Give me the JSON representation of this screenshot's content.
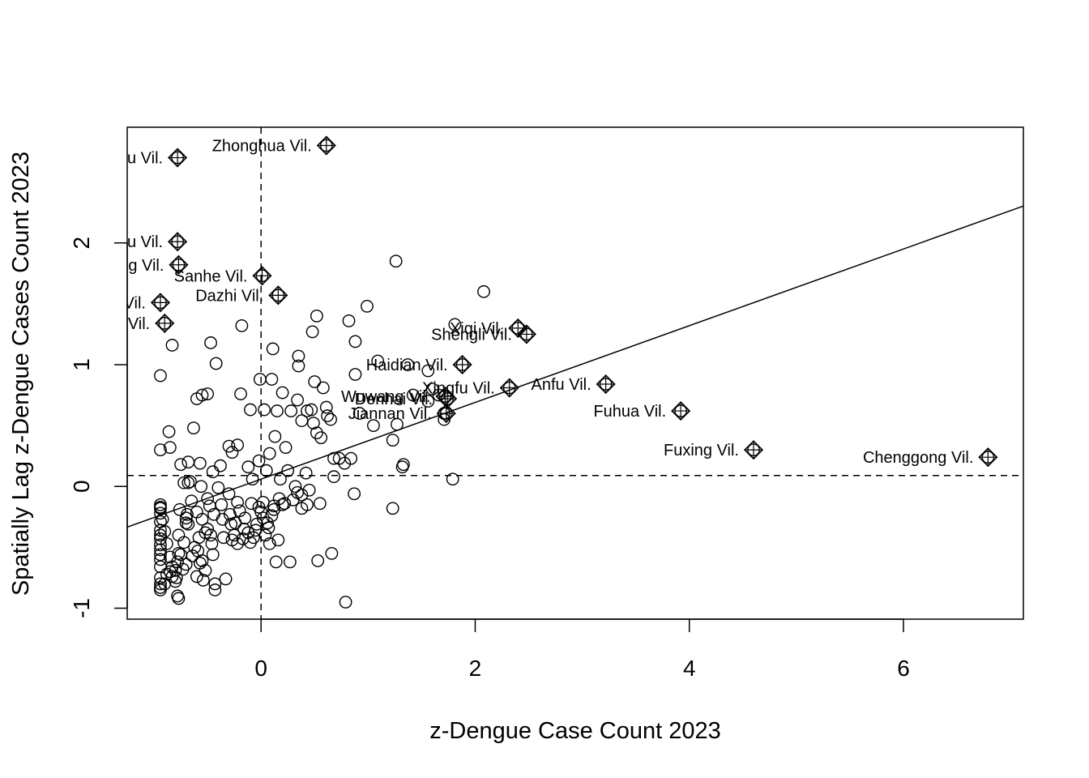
{
  "chart_data": {
    "type": "scatter",
    "title": "",
    "xlabel": "z-Dengue Case Count 2023",
    "ylabel": "Spatially Lag z-Dengue Cases Count 2023",
    "xlim": [
      -1.25,
      7.12
    ],
    "ylim": [
      -1.09,
      2.95
    ],
    "x_ticks": [
      0,
      2,
      4,
      6
    ],
    "y_ticks": [
      -1,
      0,
      1,
      2
    ],
    "x_tick_labels": [
      "0",
      "2",
      "4",
      "6"
    ],
    "y_tick_labels": [
      "-1",
      "0",
      "1",
      "2"
    ],
    "grid": false,
    "reference_lines": {
      "vertical_dashed_x": 0,
      "horizontal_dashed_y": 0.09,
      "regression_line": {
        "intercept": 0.06,
        "slope": 0.315
      }
    },
    "points": [
      [
        -0.94,
        -0.85
      ],
      [
        -0.94,
        -0.83
      ],
      [
        -0.94,
        -0.8
      ],
      [
        -0.94,
        -0.75
      ],
      [
        -0.94,
        -0.66
      ],
      [
        -0.94,
        -0.6
      ],
      [
        -0.94,
        -0.56
      ],
      [
        -0.94,
        -0.52
      ],
      [
        -0.94,
        -0.48
      ],
      [
        -0.94,
        -0.43
      ],
      [
        -0.94,
        -0.4
      ],
      [
        -0.94,
        -0.36
      ],
      [
        -0.94,
        -0.29
      ],
      [
        -0.94,
        -0.22
      ],
      [
        -0.94,
        -0.18
      ],
      [
        -0.94,
        -0.15
      ],
      [
        -0.94,
        0.3
      ],
      [
        -0.94,
        0.91
      ],
      [
        -0.9,
        -0.8
      ],
      [
        -0.88,
        -0.72
      ],
      [
        -0.85,
        -0.7
      ],
      [
        -0.83,
        -0.74
      ],
      [
        -0.8,
        -0.69
      ],
      [
        -0.79,
        -0.75
      ],
      [
        -0.78,
        -0.62
      ],
      [
        -0.77,
        -0.55
      ],
      [
        -0.77,
        -0.4
      ],
      [
        -0.76,
        -0.19
      ],
      [
        -0.78,
        -0.9
      ],
      [
        -0.77,
        -0.92
      ],
      [
        -0.73,
        -0.68
      ],
      [
        -0.7,
        -0.64
      ],
      [
        -0.7,
        -0.3
      ],
      [
        -0.7,
        -0.26
      ],
      [
        -0.69,
        -0.23
      ],
      [
        -0.68,
        0.03
      ],
      [
        -0.66,
        0.04
      ],
      [
        -0.64,
        -0.57
      ],
      [
        -0.62,
        -0.5
      ],
      [
        -0.6,
        -0.74
      ],
      [
        -0.59,
        -0.53
      ],
      [
        -0.58,
        -0.42
      ],
      [
        -0.57,
        -0.63
      ],
      [
        -0.56,
        0.0
      ],
      [
        -0.55,
        -0.61
      ],
      [
        -0.54,
        -0.77
      ],
      [
        -0.52,
        -0.69
      ],
      [
        -0.5,
        -0.35
      ],
      [
        -0.5,
        -0.1
      ],
      [
        -0.47,
        -0.4
      ],
      [
        -0.46,
        -0.47
      ],
      [
        -0.45,
        -0.56
      ],
      [
        -0.43,
        -0.85
      ],
      [
        -0.43,
        -0.8
      ],
      [
        -0.4,
        -0.01
      ],
      [
        -0.37,
        -0.15
      ],
      [
        -0.35,
        -0.42
      ],
      [
        -0.33,
        -0.76
      ],
      [
        -0.3,
        -0.06
      ],
      [
        -0.29,
        -0.23
      ],
      [
        -0.27,
        -0.44
      ],
      [
        -0.25,
        -0.4
      ],
      [
        -0.24,
        -0.3
      ],
      [
        -0.22,
        -0.47
      ],
      [
        -0.2,
        -0.2
      ],
      [
        -0.17,
        -0.43
      ],
      [
        -0.15,
        -0.26
      ],
      [
        -0.12,
        -0.38
      ],
      [
        -0.1,
        -0.46
      ],
      [
        -0.07,
        -0.42
      ],
      [
        -0.05,
        -0.36
      ],
      [
        -0.02,
        -0.17
      ],
      [
        0.0,
        -0.21
      ],
      [
        0.02,
        -0.13
      ],
      [
        0.04,
        -0.4
      ],
      [
        0.06,
        -0.3
      ],
      [
        0.08,
        -0.47
      ],
      [
        0.1,
        -0.24
      ],
      [
        0.12,
        -0.16
      ],
      [
        0.14,
        -0.62
      ],
      [
        0.16,
        -0.44
      ],
      [
        0.2,
        -0.15
      ],
      [
        0.27,
        -0.62
      ],
      [
        0.3,
        -0.11
      ],
      [
        0.34,
        -0.05
      ],
      [
        0.38,
        -0.18
      ],
      [
        0.43,
        -0.15
      ],
      [
        0.55,
        -0.14
      ],
      [
        0.53,
        -0.61
      ],
      [
        0.66,
        -0.55
      ],
      [
        0.87,
        -0.06
      ],
      [
        0.79,
        -0.95
      ],
      [
        1.23,
        -0.18
      ],
      [
        1.79,
        0.06
      ],
      [
        -0.86,
        0.45
      ],
      [
        -0.85,
        0.32
      ],
      [
        -0.83,
        1.16
      ],
      [
        -0.75,
        0.18
      ],
      [
        -0.72,
        0.03
      ],
      [
        -0.68,
        0.2
      ],
      [
        -0.63,
        0.48
      ],
      [
        -0.6,
        0.72
      ],
      [
        -0.57,
        0.19
      ],
      [
        -0.55,
        0.75
      ],
      [
        -0.5,
        0.76
      ],
      [
        -0.47,
        1.18
      ],
      [
        -0.45,
        0.12
      ],
      [
        -0.42,
        1.01
      ],
      [
        -0.38,
        0.17
      ],
      [
        -0.3,
        0.33
      ],
      [
        -0.27,
        0.28
      ],
      [
        -0.22,
        0.34
      ],
      [
        -0.19,
        0.76
      ],
      [
        -0.18,
        1.32
      ],
      [
        -0.12,
        0.16
      ],
      [
        -0.1,
        0.63
      ],
      [
        -0.08,
        0.06
      ],
      [
        -0.02,
        0.21
      ],
      [
        -0.01,
        0.88
      ],
      [
        0.03,
        0.63
      ],
      [
        0.05,
        0.13
      ],
      [
        0.08,
        0.27
      ],
      [
        0.1,
        0.88
      ],
      [
        0.11,
        1.13
      ],
      [
        0.13,
        0.41
      ],
      [
        0.15,
        0.62
      ],
      [
        0.18,
        0.06
      ],
      [
        0.2,
        0.77
      ],
      [
        0.23,
        0.32
      ],
      [
        0.25,
        0.13
      ],
      [
        0.28,
        0.62
      ],
      [
        0.32,
        0.0
      ],
      [
        0.34,
        0.71
      ],
      [
        0.35,
        0.99
      ],
      [
        0.35,
        1.07
      ],
      [
        0.38,
        0.54
      ],
      [
        0.42,
        0.11
      ],
      [
        0.43,
        0.62
      ],
      [
        0.47,
        0.63
      ],
      [
        0.48,
        1.27
      ],
      [
        0.49,
        0.52
      ],
      [
        0.5,
        0.86
      ],
      [
        0.52,
        0.44
      ],
      [
        0.52,
        1.4
      ],
      [
        0.56,
        0.4
      ],
      [
        0.58,
        0.81
      ],
      [
        0.61,
        0.65
      ],
      [
        0.62,
        0.58
      ],
      [
        0.65,
        0.55
      ],
      [
        0.68,
        0.23
      ],
      [
        0.68,
        0.08
      ],
      [
        0.73,
        0.23
      ],
      [
        0.78,
        0.19
      ],
      [
        0.82,
        1.36
      ],
      [
        0.84,
        0.23
      ],
      [
        0.88,
        0.92
      ],
      [
        0.88,
        1.19
      ],
      [
        0.92,
        0.6
      ],
      [
        0.99,
        1.48
      ],
      [
        1.05,
        0.5
      ],
      [
        1.09,
        1.03
      ],
      [
        1.23,
        0.38
      ],
      [
        1.26,
        1.85
      ],
      [
        1.27,
        0.51
      ],
      [
        1.32,
        0.16
      ],
      [
        1.33,
        0.18
      ],
      [
        1.37,
        1.0
      ],
      [
        1.42,
        0.75
      ],
      [
        1.56,
        0.7
      ],
      [
        1.56,
        0.95
      ],
      [
        1.6,
        0.8
      ],
      [
        1.66,
        0.75
      ],
      [
        1.71,
        0.55
      ],
      [
        1.71,
        0.6
      ],
      [
        1.81,
        1.33
      ],
      [
        2.08,
        1.6
      ],
      [
        -0.94,
        -0.17
      ],
      [
        -0.92,
        -0.27
      ],
      [
        -0.9,
        -0.37
      ],
      [
        -0.88,
        -0.47
      ],
      [
        -0.85,
        -0.58
      ],
      [
        -0.83,
        -0.66
      ],
      [
        -0.8,
        -0.78
      ],
      [
        -0.75,
        -0.56
      ],
      [
        -0.72,
        -0.46
      ],
      [
        -0.68,
        -0.31
      ],
      [
        -0.65,
        -0.12
      ],
      [
        -0.6,
        -0.21
      ],
      [
        -0.55,
        -0.27
      ],
      [
        -0.52,
        -0.38
      ],
      [
        -0.48,
        -0.16
      ],
      [
        -0.44,
        -0.23
      ],
      [
        -0.36,
        -0.27
      ],
      [
        -0.28,
        -0.31
      ],
      [
        -0.22,
        -0.13
      ],
      [
        -0.16,
        -0.35
      ],
      [
        -0.09,
        -0.14
      ],
      [
        -0.04,
        -0.31
      ],
      [
        0.02,
        -0.26
      ],
      [
        0.07,
        -0.34
      ],
      [
        0.12,
        -0.19
      ],
      [
        0.17,
        -0.1
      ],
      [
        0.22,
        -0.14
      ],
      [
        0.38,
        -0.07
      ],
      [
        0.45,
        -0.03
      ]
    ],
    "labeled_points": [
      {
        "name": "Zhonghua Vil.",
        "x": 0.61,
        "y": 2.8
      },
      {
        "name": "u Vil.",
        "x": -0.78,
        "y": 2.7
      },
      {
        "name": "u Vil.",
        "x": -0.78,
        "y": 2.01
      },
      {
        "name": "g Vil.",
        "x": -0.77,
        "y": 1.82
      },
      {
        "name": "Sanhe Vil.",
        "x": 0.01,
        "y": 1.73
      },
      {
        "name": "Dazhi Vil.",
        "x": 0.16,
        "y": 1.57
      },
      {
        "name": "Vil.",
        "x": -0.94,
        "y": 1.51
      },
      {
        "name": "Vil.",
        "x": -0.9,
        "y": 1.34
      },
      {
        "name": "Xiqi Vil.",
        "x": 2.4,
        "y": 1.3
      },
      {
        "name": "Shengli Vil.",
        "x": 2.48,
        "y": 1.25
      },
      {
        "name": "Haidian Vil.",
        "x": 1.88,
        "y": 1.0
      },
      {
        "name": "Anfu Vil.",
        "x": 3.22,
        "y": 0.84
      },
      {
        "name": "Xingfu Vil.",
        "x": 2.32,
        "y": 0.81
      },
      {
        "name": "Wuwang Vil.",
        "x": 1.72,
        "y": 0.74
      },
      {
        "name": "Denhai Vil.",
        "x": 1.74,
        "y": 0.72
      },
      {
        "name": "Jiannan Vil.",
        "x": 1.73,
        "y": 0.6
      },
      {
        "name": "Fuhua Vil.",
        "x": 3.92,
        "y": 0.62
      },
      {
        "name": "Fuxing Vil.",
        "x": 4.6,
        "y": 0.3
      },
      {
        "name": "Chenggong Vil.",
        "x": 6.79,
        "y": 0.24
      }
    ]
  }
}
